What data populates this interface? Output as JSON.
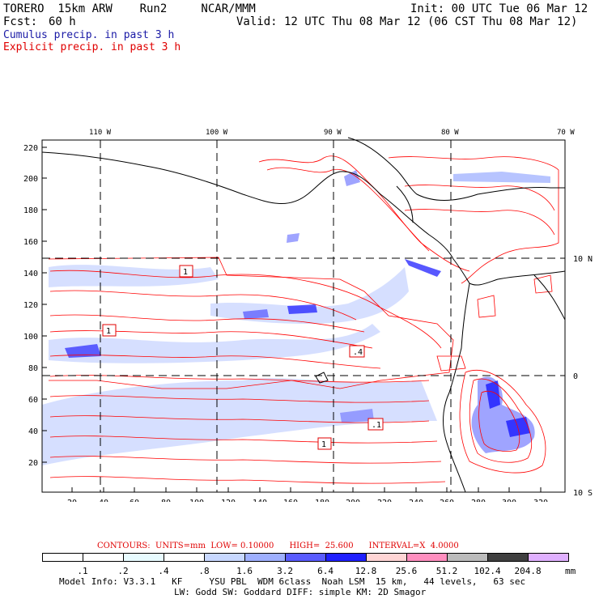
{
  "header": {
    "model": "TORERO  15km ARW    Run2     NCAR/MMM",
    "init": "Init: 00 UTC Tue 06 Mar 12",
    "fcst_label": "Fcst:",
    "fcst_value": "60 h",
    "valid": "Valid: 12 UTC Thu 08 Mar 12 (06 CST Thu 08 Mar 12)",
    "cumulus_label": "Cumulus precip. in past 3 h",
    "explicit_label": "Explicit precip. in past 3 h"
  },
  "map": {
    "top_lon_labels": [
      "110 W",
      "100 W",
      "90 W",
      "80 W",
      "70 W"
    ],
    "left_y_ticks": [
      "220",
      "200",
      "180",
      "160",
      "140",
      "120",
      "100",
      "80",
      "60",
      "40",
      "20"
    ],
    "bottom_x_ticks": [
      "20",
      "40",
      "60",
      "80",
      "100",
      "120",
      "140",
      "160",
      "180",
      "200",
      "220",
      "240",
      "260",
      "280",
      "300",
      "320"
    ],
    "right_lat_labels": [
      "10 N",
      "0",
      "10 S"
    ],
    "boxed_labels": [
      {
        "text": "1",
        "near": "110W"
      },
      {
        "text": "1",
        "near": "100W"
      },
      {
        "text": ".4",
        "near": "90W"
      },
      {
        "text": ".1",
        "near": "85W"
      },
      {
        "text": "1",
        "near": "90W south"
      }
    ],
    "colors": {
      "explicit_contour": "#ff0000",
      "cumulus_low": "#c8d4ff",
      "cumulus_mid": "#7f86ff",
      "cumulus_high": "#1010ff",
      "coast": "#000000"
    }
  },
  "contour_line": "CONTOURS:  UNITS=mm  LOW= 0.10000      HIGH=  25.600      INTERVAL=X  4.0000",
  "colorbar": {
    "labels": [
      ".1",
      ".2",
      ".4",
      ".8",
      "1.6",
      "3.2",
      "6.4",
      "12.8",
      "25.6",
      "51.2",
      "102.4",
      "204.8"
    ],
    "unit": "mm",
    "colors": [
      "#ffffff",
      "#ffffff",
      "#e8fbff",
      "#ffffff",
      "#c8d8ff",
      "#9fb0ff",
      "#5a5cff",
      "#2020ff",
      "#ffd5d5",
      "#ff8fbf",
      "#bcbcbc",
      "#404040",
      "#e0b0ff"
    ]
  },
  "footer": {
    "line1": "Model Info: V3.3.1   KF     YSU PBL  WDM 6class  Noah LSM  15 km,   44 levels,   63 sec",
    "line2": "LW: Godd SW: Goddard DIFF: simple KM: 2D Smagor"
  }
}
